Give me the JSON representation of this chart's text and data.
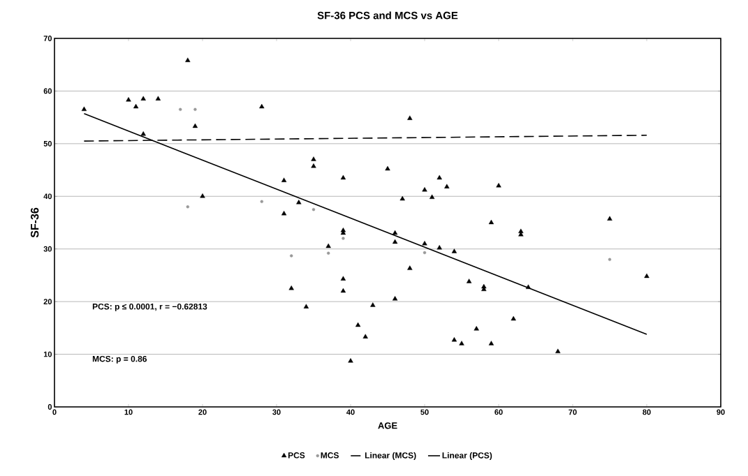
{
  "chart_data": {
    "type": "scatter",
    "title": "SF-36 PCS and MCS vs AGE",
    "xlabel": "AGE",
    "ylabel": "SF-36",
    "xlim": [
      0,
      90
    ],
    "xticks": [
      0,
      10,
      20,
      30,
      40,
      50,
      60,
      70,
      80,
      90
    ],
    "ylim": [
      0,
      70
    ],
    "yticks": [
      0,
      10,
      20,
      30,
      40,
      50,
      60,
      70
    ],
    "grid": "y",
    "legend": "bottom",
    "annotations": [
      "PCS:  p ≤ 0.0001, r =  −0.62813",
      "MCS:  p = 0.86"
    ],
    "series": [
      {
        "name": "PCS",
        "marker": "triangle",
        "color": "#000000",
        "x": [
          4,
          10,
          11,
          12,
          12,
          14,
          18,
          19,
          20,
          28,
          31,
          31,
          32,
          33,
          34,
          35,
          35,
          37,
          39,
          39,
          39,
          39,
          39,
          40,
          41,
          42,
          43,
          45,
          46,
          46,
          46,
          47,
          48,
          50,
          50,
          51,
          52,
          52,
          53,
          54,
          54,
          55,
          56,
          57,
          58,
          58,
          59,
          59,
          60,
          62,
          63,
          63,
          64,
          68,
          75,
          80,
          48
        ],
        "values": [
          56.5,
          58.3,
          57,
          58.5,
          51.8,
          58.5,
          65.8,
          53.3,
          40,
          57,
          43,
          36.7,
          22.5,
          38.8,
          19,
          47,
          45.7,
          30.5,
          43.5,
          33.5,
          33,
          24.3,
          22,
          8.7,
          15.5,
          13.3,
          19.3,
          45.2,
          33,
          31.3,
          20.5,
          39.5,
          26.3,
          41.2,
          31,
          39.8,
          43.5,
          30.2,
          41.8,
          29.5,
          12.7,
          12,
          23.8,
          14.8,
          22.8,
          22.3,
          35,
          12,
          42,
          16.7,
          33.3,
          32.7,
          22.7,
          10.5,
          35.7,
          24.8,
          54.8
        ]
      },
      {
        "name": "MCS",
        "marker": "circle",
        "color": "#999999",
        "x": [
          17,
          19,
          18,
          28,
          32,
          35,
          37,
          39,
          50,
          75
        ],
        "values": [
          56.5,
          56.5,
          38,
          39,
          28.7,
          37.5,
          29.2,
          32,
          29.3,
          28
        ]
      },
      {
        "name": "Linear (MCS)",
        "type": "line",
        "marker": "none",
        "line_style": "dashed",
        "color": "#000000",
        "x": [
          4,
          80
        ],
        "values": [
          50.5,
          51.6
        ]
      },
      {
        "name": "Linear (PCS)",
        "type": "line",
        "marker": "none",
        "line_style": "solid",
        "color": "#000000",
        "x": [
          4,
          80
        ],
        "values": [
          55.7,
          13.8
        ]
      }
    ]
  }
}
